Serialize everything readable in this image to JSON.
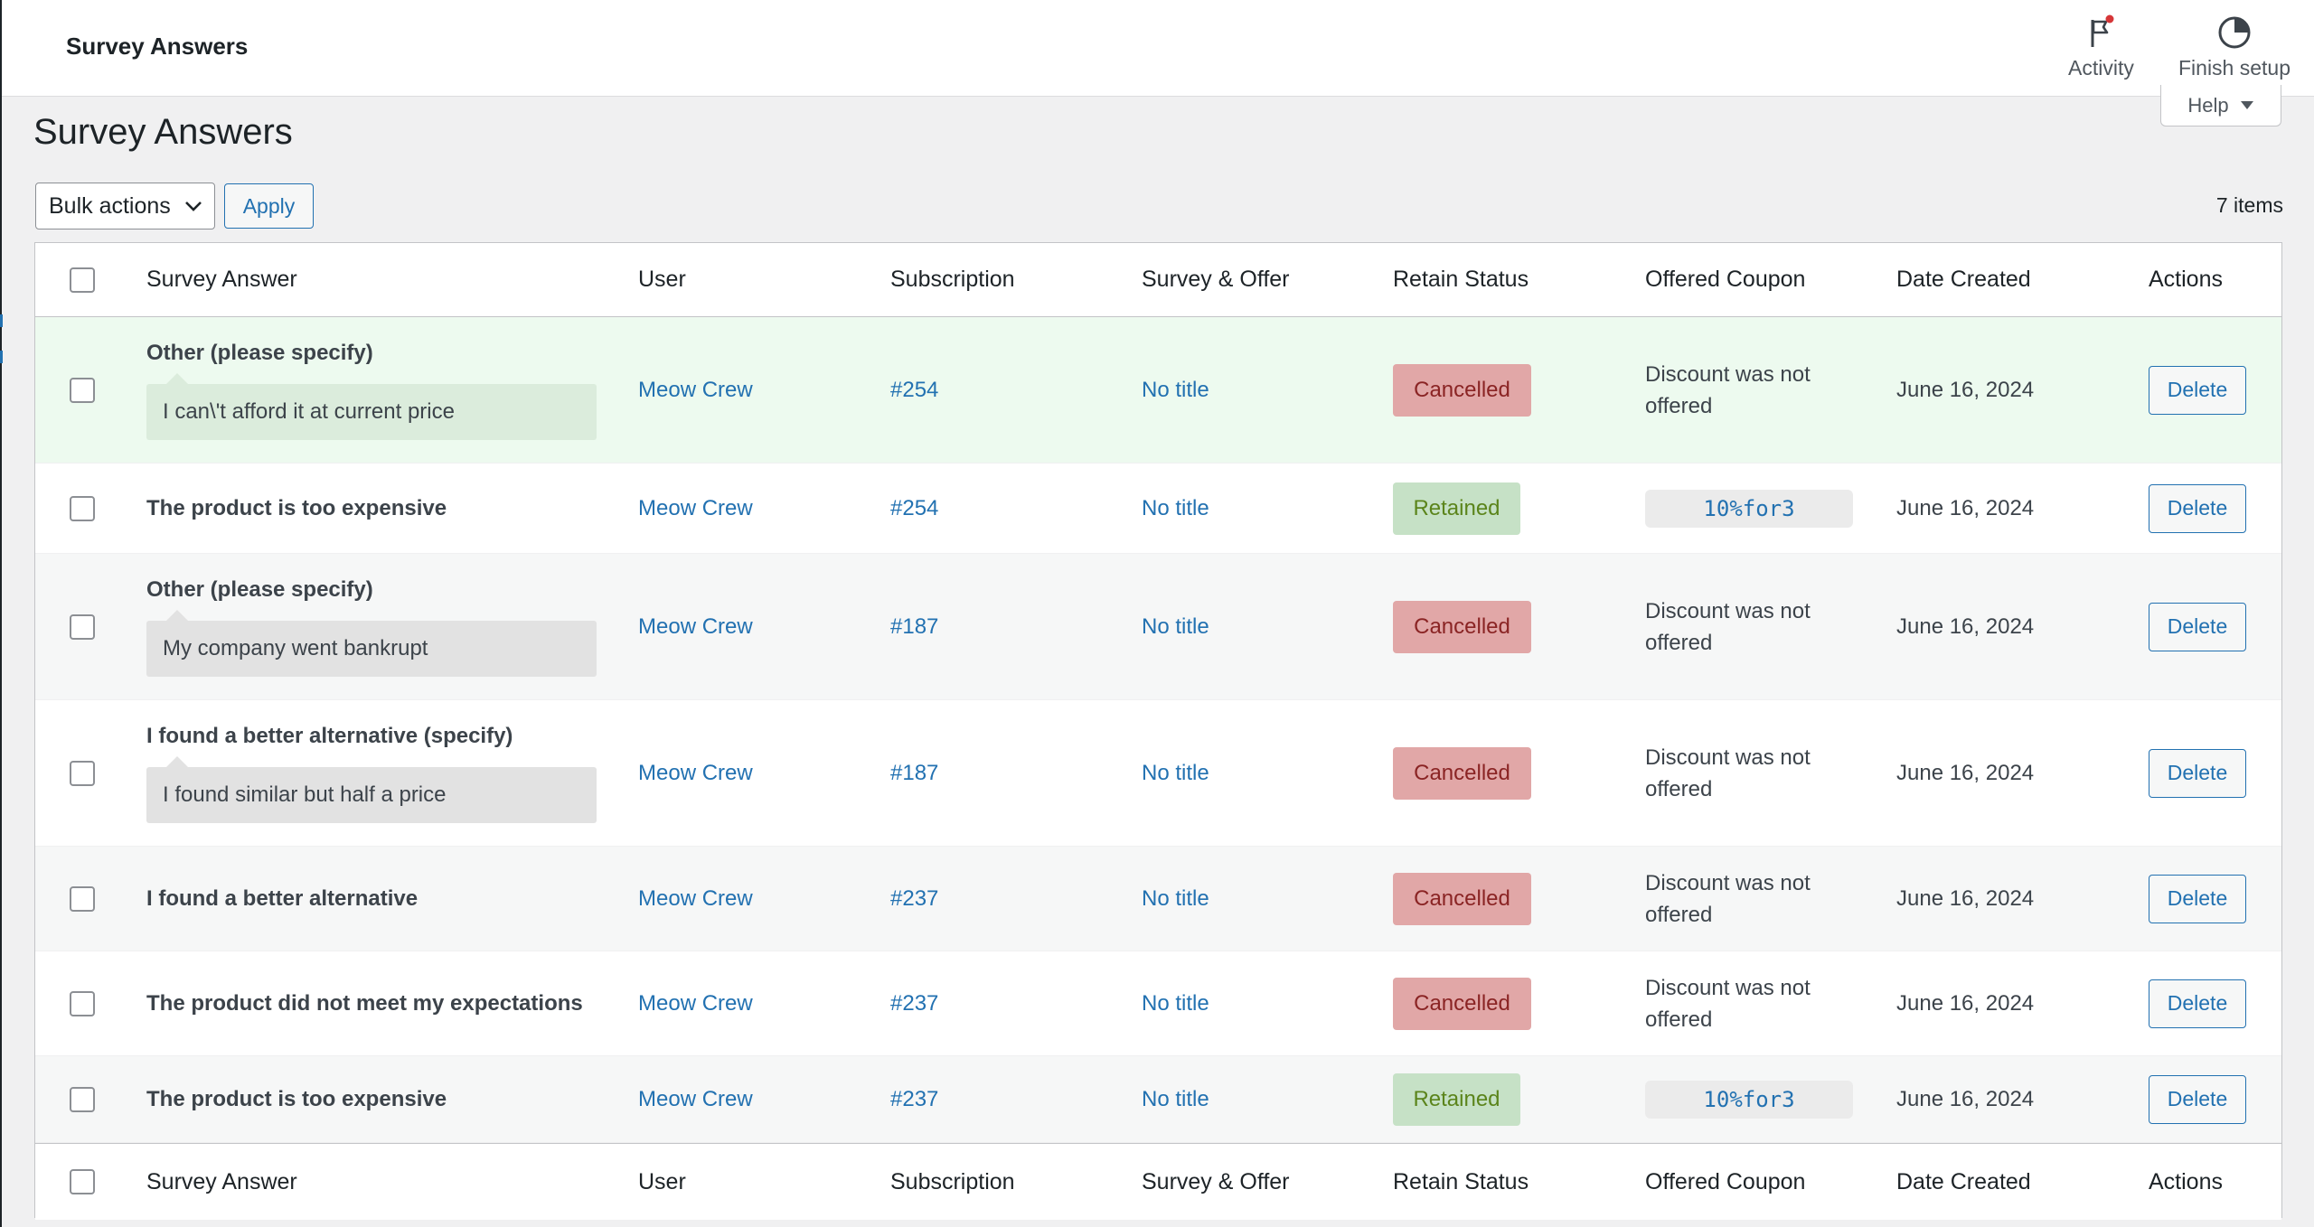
{
  "topbar": {
    "title": "Survey Answers",
    "activity_label": "Activity",
    "finish_setup_label": "Finish setup"
  },
  "help": {
    "label": "Help"
  },
  "page": {
    "title": "Survey Answers"
  },
  "bulk": {
    "selected": "Bulk actions",
    "apply_label": "Apply"
  },
  "items_count": "7 items",
  "table": {
    "columns": {
      "answer": "Survey Answer",
      "user": "User",
      "subscription": "Subscription",
      "survey": "Survey & Offer",
      "status": "Retain Status",
      "coupon": "Offered Coupon",
      "date": "Date Created",
      "actions": "Actions"
    },
    "rows": [
      {
        "answer": "Other (please specify)",
        "note": "I can\\'t afford it at current price",
        "user": "Meow Crew",
        "subscription": "#254",
        "survey": "No title",
        "status": "Cancelled",
        "coupon": "Discount was not offered",
        "date": "June 16, 2024",
        "action": "Delete"
      },
      {
        "answer": "The product is too expensive",
        "note": "",
        "user": "Meow Crew",
        "subscription": "#254",
        "survey": "No title",
        "status": "Retained",
        "coupon": "10%for3",
        "date": "June 16, 2024",
        "action": "Delete"
      },
      {
        "answer": "Other (please specify)",
        "note": "My company went bankrupt",
        "user": "Meow Crew",
        "subscription": "#187",
        "survey": "No title",
        "status": "Cancelled",
        "coupon": "Discount was not offered",
        "date": "June 16, 2024",
        "action": "Delete"
      },
      {
        "answer": "I found a better alternative (specify)",
        "note": "I found similar but half a price",
        "user": "Meow Crew",
        "subscription": "#187",
        "survey": "No title",
        "status": "Cancelled",
        "coupon": "Discount was not offered",
        "date": "June 16, 2024",
        "action": "Delete"
      },
      {
        "answer": "I found a better alternative",
        "note": "",
        "user": "Meow Crew",
        "subscription": "#237",
        "survey": "No title",
        "status": "Cancelled",
        "coupon": "Discount was not offered",
        "date": "June 16, 2024",
        "action": "Delete"
      },
      {
        "answer": "The product did not meet my expectations",
        "note": "",
        "user": "Meow Crew",
        "subscription": "#237",
        "survey": "No title",
        "status": "Cancelled",
        "coupon": "Discount was not offered",
        "date": "June 16, 2024",
        "action": "Delete"
      },
      {
        "answer": "The product is too expensive",
        "note": "",
        "user": "Meow Crew",
        "subscription": "#237",
        "survey": "No title",
        "status": "Retained",
        "coupon": "10%for3",
        "date": "June 16, 2024",
        "action": "Delete"
      }
    ]
  },
  "colors": {
    "link": "#2271b1",
    "cancelled_bg": "#e1a7a7",
    "retained_bg": "#c6e1c6",
    "highlight_row": "#edfaef"
  },
  "icons": [
    "flag-icon",
    "progress-circle-icon",
    "caret-down-icon",
    "chevron-down-icon"
  ]
}
